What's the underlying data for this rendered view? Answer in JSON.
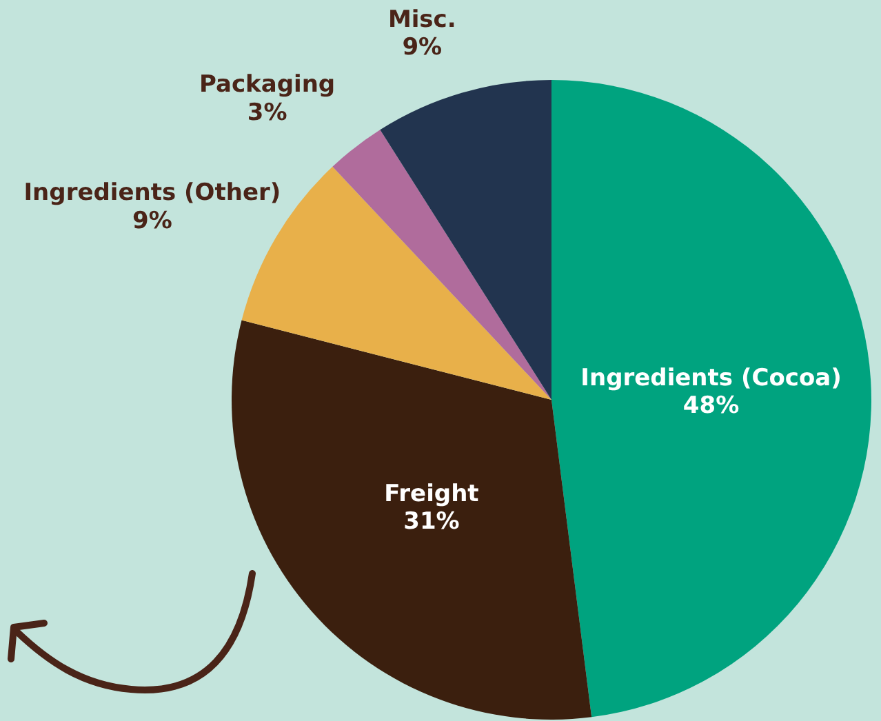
{
  "chart_data": {
    "type": "pie",
    "categories": [
      "Ingredients (Cocoa)",
      "Freight",
      "Ingredients (Other)",
      "Packaging",
      "Misc."
    ],
    "values": [
      48,
      31,
      9,
      3,
      9
    ],
    "colors": [
      "#00a37f",
      "#3b1f0e",
      "#e8b04a",
      "#b06c9c",
      "#22344f"
    ],
    "value_labels": [
      "48%",
      "31%",
      "9%",
      "3%",
      "9%"
    ]
  }
}
